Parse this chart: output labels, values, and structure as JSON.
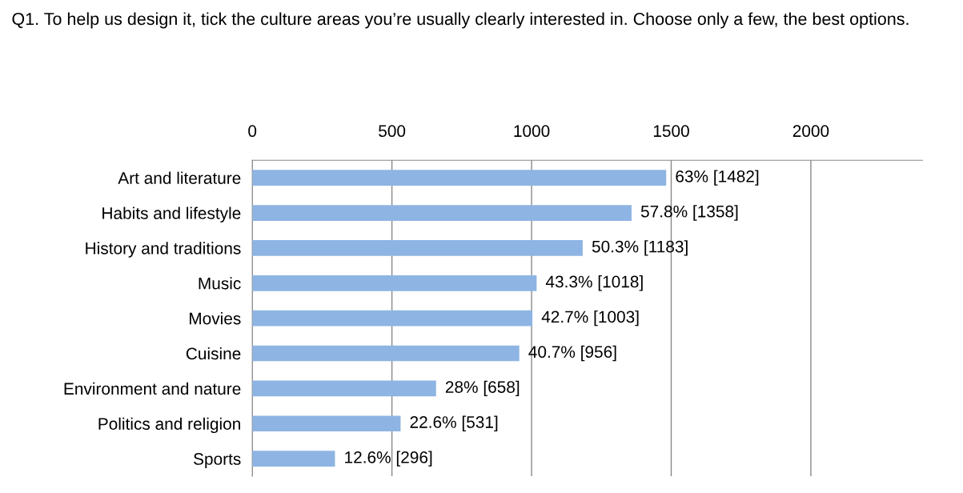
{
  "chart_data": {
    "type": "bar",
    "orientation": "horizontal",
    "title": "Q1. To help us design it, tick the culture areas you’re usually clearly interested in. Choose only a few, the best options.",
    "categories": [
      "Art and literature",
      "Habits and lifestyle",
      "History and traditions",
      "Music",
      "Movies",
      "Cuisine",
      "Environment and nature",
      "Politics and religion",
      "Sports"
    ],
    "values": [
      1482,
      1358,
      1183,
      1018,
      1003,
      956,
      658,
      531,
      296
    ],
    "value_labels": [
      "63% [1482]",
      "57.8% [1358]",
      "50.3% [1183]",
      "43.3% [1018]",
      "42.7% [1003]",
      "40.7% [956]",
      "28% [658]",
      "22.6% [531]",
      "12.6% [296]"
    ],
    "color": "#8eb4e3",
    "xlim": [
      0,
      2400
    ],
    "xticks": [
      0,
      500,
      1000,
      1500,
      2000
    ],
    "grid": "x",
    "legend": false
  }
}
